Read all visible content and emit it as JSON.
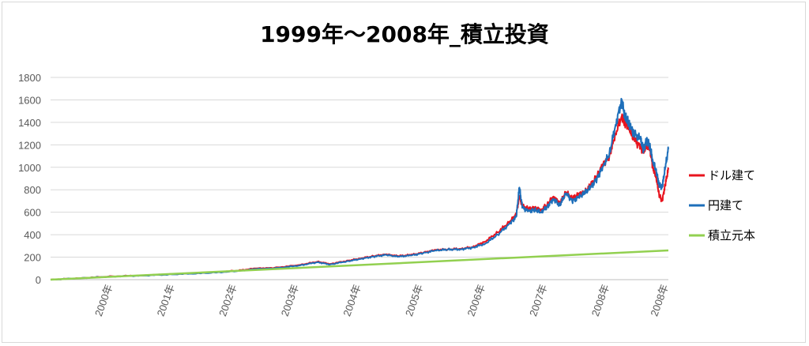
{
  "chart_data": {
    "type": "line",
    "title": "1999年～2008年_積立投資",
    "xlabel": "",
    "ylabel": "",
    "ylim": [
      0,
      1800
    ],
    "yticks": [
      0,
      200,
      400,
      600,
      800,
      1000,
      1200,
      1400,
      1600,
      1800
    ],
    "xlim": [
      1999.0,
      2008.95
    ],
    "x_tick_labels": [
      "2000年",
      "2001年",
      "2002年",
      "2003年",
      "2004年",
      "2005年",
      "2006年",
      "2007年",
      "2008年",
      "2008年"
    ],
    "x_tick_positions": [
      2000,
      2001,
      2002,
      2003,
      2004,
      2005,
      2006,
      2007,
      2008,
      2008.95
    ],
    "grid": true,
    "legend_position": "right",
    "series": [
      {
        "name": "ドル建て",
        "color": "#e8141e",
        "x": [
          1999.0,
          1999.5,
          2000.0,
          2000.5,
          2001.0,
          2001.5,
          2002.0,
          2002.3,
          2002.6,
          2003.0,
          2003.3,
          2003.5,
          2003.8,
          2004.0,
          2004.2,
          2004.4,
          2004.6,
          2004.8,
          2005.0,
          2005.2,
          2005.4,
          2005.6,
          2005.8,
          2006.0,
          2006.2,
          2006.4,
          2006.5,
          2006.55,
          2006.6,
          2006.7,
          2006.8,
          2006.9,
          2007.0,
          2007.1,
          2007.2,
          2007.3,
          2007.4,
          2007.5,
          2007.6,
          2007.7,
          2007.8,
          2007.9,
          2008.0,
          2008.1,
          2008.2,
          2008.25,
          2008.3,
          2008.35,
          2008.4,
          2008.5,
          2008.55,
          2008.6,
          2008.65,
          2008.7,
          2008.75,
          2008.8,
          2008.85,
          2008.9,
          2008.95
        ],
        "values": [
          0,
          15,
          30,
          38,
          50,
          60,
          80,
          100,
          105,
          130,
          160,
          140,
          170,
          190,
          210,
          225,
          210,
          220,
          240,
          265,
          270,
          275,
          290,
          340,
          420,
          520,
          580,
          740,
          650,
          630,
          640,
          620,
          670,
          740,
          680,
          780,
          720,
          760,
          780,
          840,
          920,
          1030,
          1100,
          1300,
          1460,
          1400,
          1380,
          1300,
          1250,
          1180,
          1130,
          1200,
          1180,
          1000,
          920,
          760,
          700,
          850,
          980
        ]
      },
      {
        "name": "円建て",
        "color": "#1e6fba",
        "x": [
          1999.0,
          1999.5,
          2000.0,
          2000.5,
          2001.0,
          2001.5,
          2002.0,
          2002.3,
          2002.6,
          2003.0,
          2003.3,
          2003.5,
          2003.8,
          2004.0,
          2004.2,
          2004.4,
          2004.6,
          2004.8,
          2005.0,
          2005.2,
          2005.4,
          2005.6,
          2005.8,
          2006.0,
          2006.2,
          2006.4,
          2006.5,
          2006.55,
          2006.6,
          2006.7,
          2006.8,
          2006.9,
          2007.0,
          2007.1,
          2007.2,
          2007.3,
          2007.4,
          2007.5,
          2007.6,
          2007.7,
          2007.8,
          2007.9,
          2008.0,
          2008.1,
          2008.2,
          2008.25,
          2008.3,
          2008.35,
          2008.4,
          2008.5,
          2008.55,
          2008.6,
          2008.65,
          2008.7,
          2008.75,
          2008.8,
          2008.85,
          2008.9,
          2008.95
        ],
        "values": [
          0,
          14,
          28,
          36,
          48,
          58,
          75,
          95,
          100,
          125,
          155,
          135,
          165,
          185,
          205,
          220,
          205,
          215,
          235,
          260,
          268,
          270,
          285,
          320,
          400,
          500,
          560,
          820,
          640,
          610,
          620,
          600,
          650,
          720,
          660,
          770,
          700,
          730,
          770,
          820,
          900,
          1010,
          1120,
          1380,
          1600,
          1450,
          1400,
          1350,
          1300,
          1250,
          1150,
          1250,
          1200,
          1050,
          980,
          850,
          820,
          1000,
          1160
        ]
      },
      {
        "name": "積立元本",
        "color": "#92d050",
        "x": [
          1999.0,
          2008.95
        ],
        "values": [
          0,
          260
        ]
      }
    ]
  }
}
